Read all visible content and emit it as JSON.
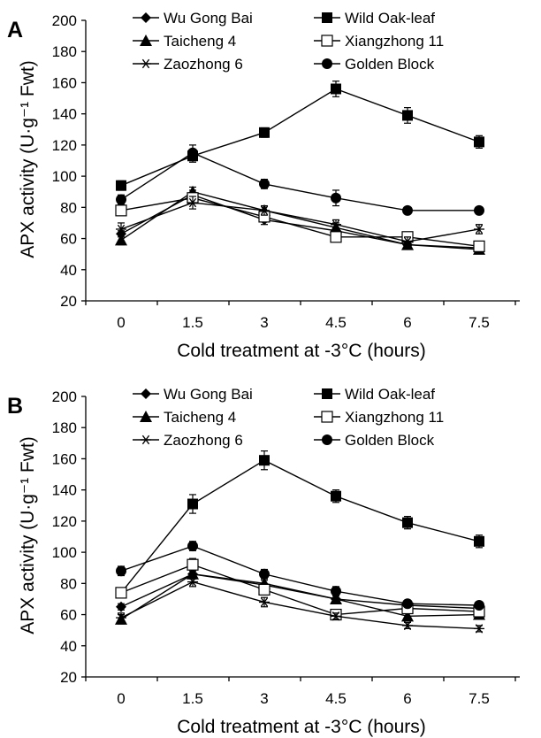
{
  "chart_data": [
    {
      "type": "line",
      "panel_label": "A",
      "xlabel": "Cold treatment at -3°C (hours)",
      "ylabel": "APX activity (U·g⁻¹ Fwt)",
      "categories": [
        "0",
        "1.5",
        "3",
        "4.5",
        "6",
        "7.5"
      ],
      "ylim": [
        20,
        200
      ],
      "yticks": [
        "20",
        "40",
        "60",
        "80",
        "100",
        "120",
        "140",
        "160",
        "180",
        "200"
      ],
      "grid": false,
      "legend_position": "top",
      "series": [
        {
          "name": "Wu Gong Bai",
          "marker": "diamond",
          "values": [
            63,
            88,
            72,
            65,
            56,
            54
          ],
          "errors": [
            2,
            3,
            3,
            2,
            2,
            2
          ]
        },
        {
          "name": "Wild Oak-leaf",
          "marker": "square",
          "values": [
            94,
            113,
            128,
            156,
            139,
            122
          ],
          "errors": [
            3,
            4,
            3,
            5,
            5,
            4
          ]
        },
        {
          "name": "Taicheng 4",
          "marker": "triangle",
          "values": [
            59,
            90,
            78,
            67,
            56,
            53
          ],
          "errors": [
            3,
            3,
            3,
            3,
            2,
            2
          ]
        },
        {
          "name": "Xiangzhong 11",
          "marker": "open-square",
          "values": [
            78,
            86,
            74,
            61,
            61,
            55
          ],
          "errors": [
            3,
            3,
            3,
            2,
            2,
            2
          ]
        },
        {
          "name": "Zaozhong 6",
          "marker": "asterisk",
          "values": [
            66,
            83,
            78,
            69,
            58,
            66
          ],
          "errors": [
            4,
            4,
            3,
            3,
            3,
            3
          ]
        },
        {
          "name": "Golden Block",
          "marker": "circle",
          "values": [
            85,
            115,
            95,
            86,
            78,
            78
          ],
          "errors": [
            3,
            5,
            3,
            5,
            2,
            2
          ]
        }
      ]
    },
    {
      "type": "line",
      "panel_label": "B",
      "xlabel": "Cold treatment at -3°C (hours)",
      "ylabel": "APX activity (U·g⁻¹ Fwt)",
      "categories": [
        "0",
        "1.5",
        "3",
        "4.5",
        "6",
        "7.5"
      ],
      "ylim": [
        20,
        200
      ],
      "yticks": [
        "20",
        "40",
        "60",
        "80",
        "100",
        "120",
        "140",
        "160",
        "180",
        "200"
      ],
      "grid": false,
      "legend_position": "top",
      "series": [
        {
          "name": "Wu Gong Bai",
          "marker": "diamond",
          "values": [
            65,
            86,
            79,
            70,
            66,
            64
          ],
          "errors": [
            2,
            3,
            3,
            2,
            2,
            2
          ]
        },
        {
          "name": "Wild Oak-leaf",
          "marker": "square",
          "values": [
            74,
            131,
            159,
            136,
            119,
            107
          ],
          "errors": [
            3,
            6,
            6,
            4,
            4,
            4
          ]
        },
        {
          "name": "Taicheng 4",
          "marker": "triangle",
          "values": [
            57,
            86,
            80,
            70,
            59,
            60
          ],
          "errors": [
            3,
            3,
            3,
            3,
            2,
            2
          ]
        },
        {
          "name": "Xiangzhong 11",
          "marker": "open-square",
          "values": [
            74,
            92,
            76,
            60,
            64,
            62
          ],
          "errors": [
            3,
            4,
            3,
            2,
            2,
            2
          ]
        },
        {
          "name": "Zaozhong 6",
          "marker": "asterisk",
          "values": [
            58,
            81,
            68,
            59,
            53,
            51
          ],
          "errors": [
            3,
            3,
            3,
            2,
            2,
            2
          ]
        },
        {
          "name": "Golden Block",
          "marker": "circle",
          "values": [
            88,
            104,
            86,
            75,
            67,
            66
          ],
          "errors": [
            3,
            3,
            3,
            3,
            2,
            2
          ]
        }
      ]
    }
  ]
}
